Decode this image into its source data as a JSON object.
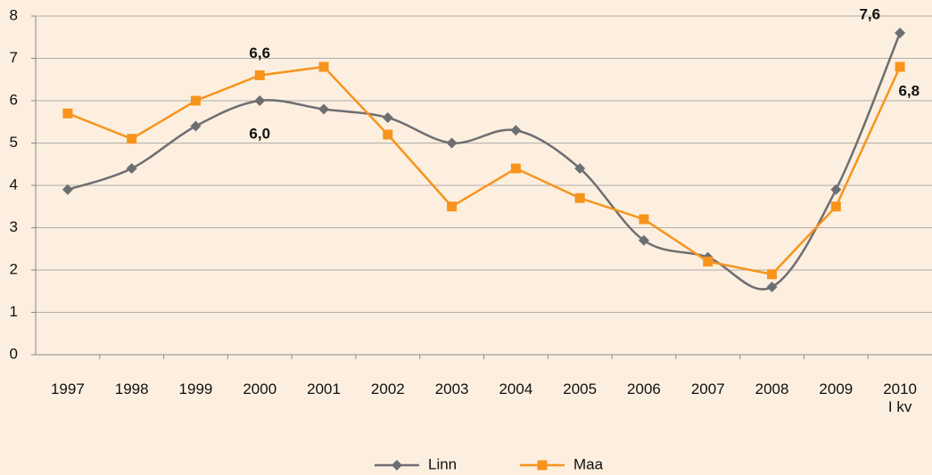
{
  "chart_data": {
    "type": "line",
    "categories": [
      "1997",
      "1998",
      "1999",
      "2000",
      "2001",
      "2002",
      "2003",
      "2004",
      "2005",
      "2006",
      "2007",
      "2008",
      "2009",
      "2010\nI kv"
    ],
    "series": [
      {
        "name": "Linn",
        "color": "#6d6e71",
        "marker": "diamond",
        "smooth": true,
        "values": [
          3.9,
          4.4,
          5.4,
          6.0,
          5.8,
          5.6,
          5.0,
          5.3,
          4.4,
          2.7,
          2.3,
          1.6,
          3.9,
          7.6
        ],
        "value_labels": [
          null,
          null,
          null,
          "6,0",
          null,
          null,
          null,
          null,
          null,
          null,
          null,
          null,
          null,
          "7,6"
        ]
      },
      {
        "name": "Maa",
        "color": "#f7941d",
        "marker": "square",
        "smooth": false,
        "values": [
          5.7,
          5.1,
          6.0,
          6.6,
          6.8,
          5.2,
          3.5,
          4.4,
          3.7,
          3.2,
          2.2,
          1.9,
          3.5,
          6.8
        ],
        "value_labels": [
          null,
          null,
          null,
          "6,6",
          null,
          null,
          null,
          null,
          null,
          null,
          null,
          null,
          null,
          "6,8"
        ]
      }
    ],
    "ylim": [
      0,
      8
    ],
    "yticks": [
      0,
      1,
      2,
      3,
      4,
      5,
      6,
      7,
      8
    ],
    "grid": true,
    "legend": "bottom"
  }
}
